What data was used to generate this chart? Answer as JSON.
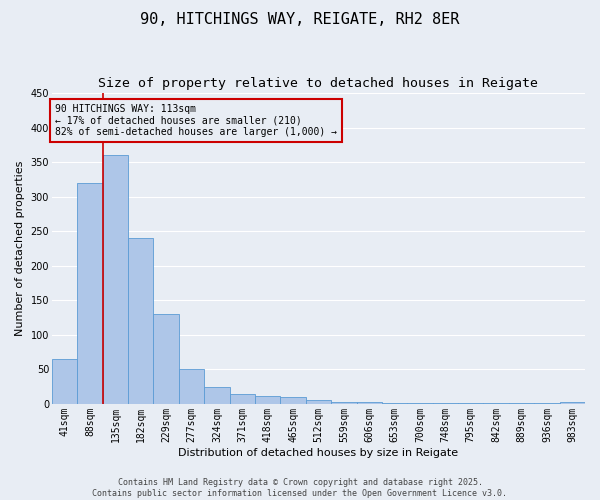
{
  "title1": "90, HITCHINGS WAY, REIGATE, RH2 8ER",
  "title2": "Size of property relative to detached houses in Reigate",
  "xlabel": "Distribution of detached houses by size in Reigate",
  "ylabel": "Number of detached properties",
  "bar_color": "#aec6e8",
  "bar_edge_color": "#5b9bd5",
  "background_color": "#e8edf4",
  "grid_color": "#ffffff",
  "annotation_line1": "90 HITCHINGS WAY: 113sqm",
  "annotation_line2": "← 17% of detached houses are smaller (210)",
  "annotation_line3": "82% of semi-detached houses are larger (1,000) →",
  "vline_color": "#cc0000",
  "annotation_box_edge_color": "#cc0000",
  "categories": [
    "41sqm",
    "88sqm",
    "135sqm",
    "182sqm",
    "229sqm",
    "277sqm",
    "324sqm",
    "371sqm",
    "418sqm",
    "465sqm",
    "512sqm",
    "559sqm",
    "606sqm",
    "653sqm",
    "700sqm",
    "748sqm",
    "795sqm",
    "842sqm",
    "889sqm",
    "936sqm",
    "983sqm"
  ],
  "values": [
    65,
    320,
    360,
    240,
    130,
    50,
    25,
    15,
    12,
    10,
    5,
    3,
    3,
    2,
    1,
    2,
    1,
    1,
    1,
    1,
    3
  ],
  "ylim": [
    0,
    450
  ],
  "yticks": [
    0,
    50,
    100,
    150,
    200,
    250,
    300,
    350,
    400,
    450
  ],
  "footer_text1": "Contains HM Land Registry data © Crown copyright and database right 2025.",
  "footer_text2": "Contains public sector information licensed under the Open Government Licence v3.0.",
  "title_fontsize": 11,
  "subtitle_fontsize": 9.5,
  "tick_fontsize": 7,
  "label_fontsize": 8,
  "annotation_fontsize": 7,
  "footer_fontsize": 6
}
